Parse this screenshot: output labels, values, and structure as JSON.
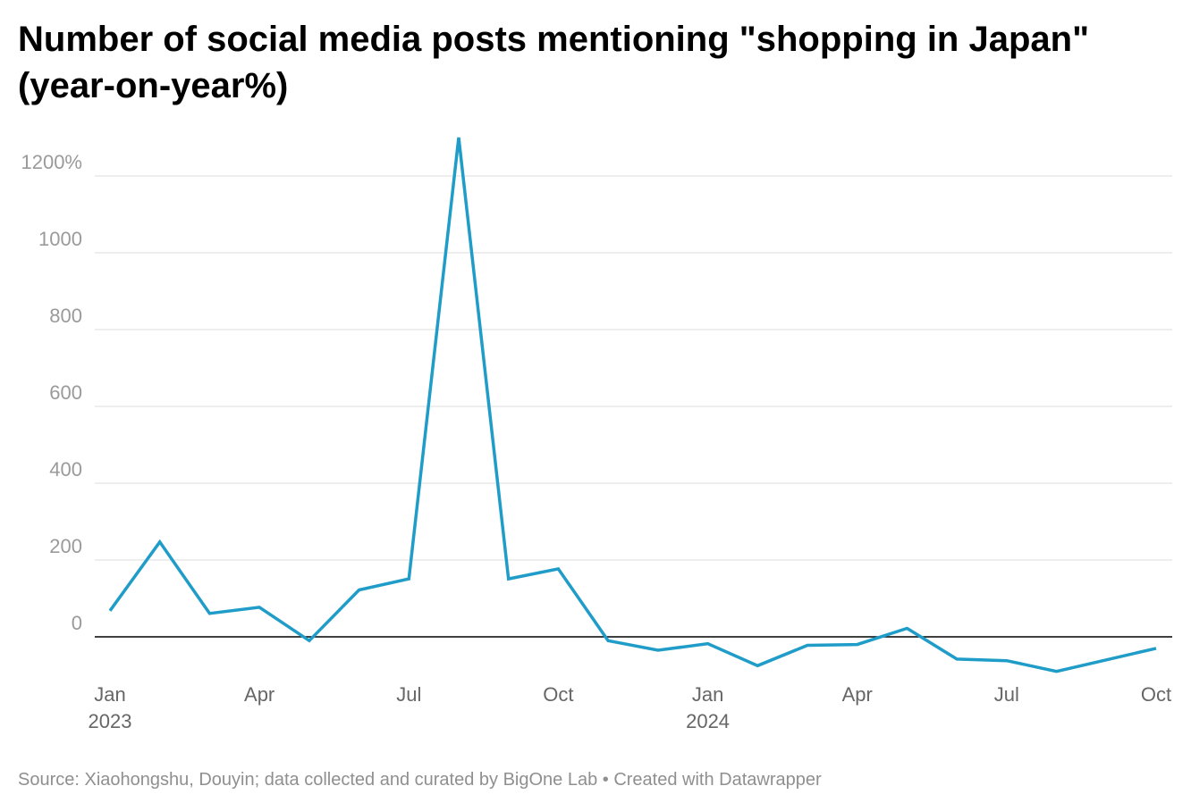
{
  "chart_data": {
    "type": "line",
    "title": "Number of social media posts mentioning \"shopping in Japan\" (year-on-year%)",
    "source": "Source: Xiaohongshu, Douyin; data collected and curated by BigOne Lab • Created with Datawrapper",
    "x": [
      "2023-01",
      "2023-02",
      "2023-03",
      "2023-04",
      "2023-05",
      "2023-06",
      "2023-07",
      "2023-08",
      "2023-09",
      "2023-10",
      "2023-11",
      "2023-12",
      "2024-01",
      "2024-02",
      "2024-03",
      "2024-04",
      "2024-05",
      "2024-06",
      "2024-07",
      "2024-08",
      "2024-09",
      "2024-10"
    ],
    "series": [
      {
        "values": [
          68,
          247,
          61,
          77,
          -10,
          122,
          151,
          1300,
          151,
          177,
          -10,
          -35,
          -18,
          -75,
          -22,
          -20,
          22,
          -58,
          -62,
          -90,
          -60,
          -30
        ]
      }
    ],
    "xticks": [
      {
        "x": "2023-01",
        "label": "Jan",
        "sublabel": "2023"
      },
      {
        "x": "2023-04",
        "label": "Apr",
        "sublabel": ""
      },
      {
        "x": "2023-07",
        "label": "Jul",
        "sublabel": ""
      },
      {
        "x": "2023-10",
        "label": "Oct",
        "sublabel": ""
      },
      {
        "x": "2024-01",
        "label": "Jan",
        "sublabel": "2024"
      },
      {
        "x": "2024-04",
        "label": "Apr",
        "sublabel": ""
      },
      {
        "x": "2024-07",
        "label": "Jul",
        "sublabel": ""
      },
      {
        "x": "2024-10",
        "label": "Oct",
        "sublabel": ""
      }
    ],
    "yticks": [
      {
        "value": 0,
        "label": "0"
      },
      {
        "value": 200,
        "label": "200"
      },
      {
        "value": 400,
        "label": "400"
      },
      {
        "value": 600,
        "label": "600"
      },
      {
        "value": 800,
        "label": "800"
      },
      {
        "value": 1000,
        "label": "1000"
      },
      {
        "value": 1200,
        "label": "1200%"
      }
    ],
    "ylim": [
      -100,
      1300
    ],
    "grid": true,
    "colors": {
      "line": "#1f9dc8",
      "grid": "#dedede",
      "zero_line": "#000000"
    }
  }
}
